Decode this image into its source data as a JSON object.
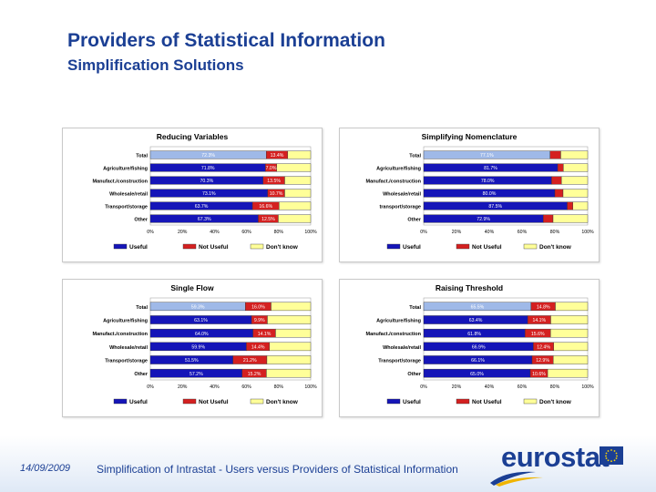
{
  "slide": {
    "title": "Providers of Statistical Information",
    "subtitle": "Simplification Solutions",
    "footer_date": "14/09/2009",
    "footer_text": "Simplification of Intrastat - Users versus Providers of Statistical Information",
    "logo_text": "eurostat"
  },
  "colors": {
    "useful": "#1515b8",
    "total_useful": "#9fb9e8",
    "not_useful": "#d42020",
    "dont_know": "#ffff99",
    "title_blue": "#1b3f94"
  },
  "chart_data": [
    {
      "type": "bar",
      "orientation": "horizontal-stacked",
      "title": "Reducing Variables",
      "categories": [
        "Total",
        "Agriculture/fishing",
        "Manufact./construction",
        "Wholesale/retail",
        "Transport/storage",
        "Other"
      ],
      "series": [
        {
          "name": "Useful",
          "values": [
            72.3,
            71.8,
            70.3,
            73.1,
            63.7,
            67.3
          ],
          "labels": [
            "72.3%",
            "71.8%",
            "70.3%",
            "73.1%",
            "63.7%",
            "67.3%"
          ]
        },
        {
          "name": "Not Useful",
          "values": [
            13.4,
            7.0,
            13.5,
            10.7,
            16.6,
            12.5
          ],
          "labels": [
            "13.4%",
            "7.0%",
            "13.5%",
            "10.7%",
            "16.6%",
            "12.5%"
          ]
        },
        {
          "name": "Don't know",
          "values": [
            14.3,
            21.2,
            16.2,
            16.2,
            19.7,
            20.2
          ]
        }
      ],
      "xticks": [
        "0%",
        "20%",
        "40%",
        "60%",
        "80%",
        "100%"
      ],
      "xlim": [
        0,
        100
      ]
    },
    {
      "type": "bar",
      "orientation": "horizontal-stacked",
      "title": "Simplifying Nomenclature",
      "categories": [
        "Total",
        "Agriculture/fishing",
        "Manufact./construction",
        "Wholesale/retail",
        "transport/storage",
        "Other"
      ],
      "series": [
        {
          "name": "Useful",
          "values": [
            77.1,
            81.7,
            78.0,
            80.0,
            87.5,
            72.9
          ],
          "labels": [
            "77.1%",
            "81.7%",
            "78.0%",
            "80.0%",
            "87.5%",
            "72.9%"
          ]
        },
        {
          "name": "Not Useful",
          "values": [
            6.5,
            3.5,
            6.0,
            5.0,
            3.5,
            6.0
          ]
        },
        {
          "name": "Don't know",
          "values": [
            16.4,
            14.8,
            16.0,
            15.0,
            9.0,
            21.1
          ]
        }
      ],
      "xticks": [
        "0%",
        "20%",
        "40%",
        "60%",
        "80%",
        "100%"
      ],
      "xlim": [
        0,
        100
      ]
    },
    {
      "type": "bar",
      "orientation": "horizontal-stacked",
      "title": "Single Flow",
      "categories": [
        "Total",
        "Agriculture/fishing",
        "Manufact./construction",
        "Wholesale/retail",
        "Transport/storage",
        "Other"
      ],
      "series": [
        {
          "name": "Useful",
          "values": [
            59.3,
            63.1,
            64.0,
            59.9,
            51.5,
            57.2
          ],
          "labels": [
            "59.3%",
            "63.1%",
            "64.0%",
            "59.9%",
            "51.5%",
            "57.2%"
          ]
        },
        {
          "name": "Not Useful",
          "values": [
            16.0,
            9.9,
            14.1,
            14.4,
            21.2,
            15.2
          ],
          "labels": [
            "16.0%",
            "9.9%",
            "14.1%",
            "14.4%",
            "21.2%",
            "15.2%"
          ]
        },
        {
          "name": "Don't know",
          "values": [
            24.7,
            27.0,
            21.9,
            25.7,
            27.3,
            27.6
          ]
        }
      ],
      "xticks": [
        "0%",
        "20%",
        "40%",
        "60%",
        "80%",
        "100%"
      ],
      "xlim": [
        0,
        100
      ]
    },
    {
      "type": "bar",
      "orientation": "horizontal-stacked",
      "title": "Raising Threshold",
      "categories": [
        "Total",
        "Agriculture/fishing",
        "Manufact./construction",
        "Wholesale/retail",
        "Transport/storage",
        "Other"
      ],
      "series": [
        {
          "name": "Useful",
          "values": [
            65.5,
            63.4,
            61.8,
            66.9,
            66.1,
            65.0
          ],
          "labels": [
            "65.5%",
            "63.4%",
            "61.8%",
            "66.9%",
            "66.1%",
            "65.0%"
          ]
        },
        {
          "name": "Not Useful",
          "values": [
            14.8,
            14.1,
            15.6,
            12.4,
            12.9,
            10.6
          ],
          "labels": [
            "14.8%",
            "14.1%",
            "15.6%",
            "12.4%",
            "12.9%",
            "10.6%"
          ]
        },
        {
          "name": "Don't know",
          "values": [
            19.7,
            22.5,
            22.6,
            20.7,
            21.0,
            24.4
          ]
        }
      ],
      "xticks": [
        "0%",
        "20%",
        "40%",
        "60%",
        "80%",
        "100%"
      ],
      "xlim": [
        0,
        100
      ]
    }
  ]
}
